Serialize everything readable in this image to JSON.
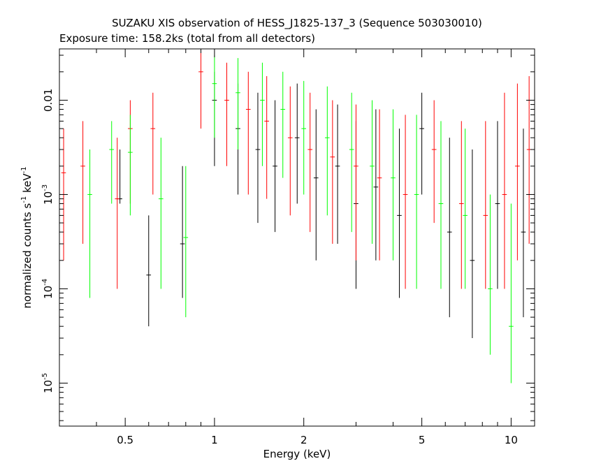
{
  "chart_data": {
    "type": "scatter",
    "title": "SUZAKU XIS observation of HESS_J1825-137_3 (Sequence 503030010)",
    "subtitle": "Exposure time: 158.2ks (total from all detectors)",
    "xlabel": "Energy (keV)",
    "ylabel": "normalized counts s",
    "ylabel_sup1": "-1",
    "ylabel_mid": " keV",
    "ylabel_sup2": "-1",
    "x_scale": "log",
    "y_scale": "log",
    "xlim": [
      0.3,
      12
    ],
    "ylim": [
      3.5e-06,
      0.035
    ],
    "x_ticks": [
      {
        "value": 0.5,
        "label": "0.5"
      },
      {
        "value": 1,
        "label": "1"
      },
      {
        "value": 2,
        "label": "2"
      },
      {
        "value": 5,
        "label": "5"
      },
      {
        "value": 10,
        "label": "10"
      }
    ],
    "y_ticks": [
      {
        "value": 0.01,
        "base": "0.01",
        "exp": ""
      },
      {
        "value": 0.001,
        "base": "10",
        "exp": "-3"
      },
      {
        "value": 0.0001,
        "base": "10",
        "exp": "-4"
      },
      {
        "value": 1e-05,
        "base": "10",
        "exp": "-5"
      }
    ],
    "grid": false,
    "legend": "none",
    "series": [
      {
        "color": "#000000",
        "points": [
          [
            0.48,
            0.0009,
            0.0008,
            0.003
          ],
          [
            0.6,
            0.00014,
            4e-05,
            0.0006
          ],
          [
            0.78,
            0.0003,
            8e-05,
            0.002
          ],
          [
            1.0,
            0.01,
            0.002,
            0.02
          ],
          [
            1.2,
            0.005,
            0.001,
            0.015
          ],
          [
            1.4,
            0.003,
            0.0005,
            0.012
          ],
          [
            1.6,
            0.002,
            0.0004,
            0.01
          ],
          [
            1.9,
            0.004,
            0.0008,
            0.015
          ],
          [
            2.2,
            0.0015,
            0.0002,
            0.008
          ],
          [
            2.6,
            0.002,
            0.0003,
            0.009
          ],
          [
            3.0,
            0.0008,
            0.0001,
            0.006
          ],
          [
            3.5,
            0.0012,
            0.0002,
            0.008
          ],
          [
            4.2,
            0.0006,
            8e-05,
            0.005
          ],
          [
            5.0,
            0.005,
            0.001,
            0.012
          ],
          [
            6.2,
            0.0004,
            5e-05,
            0.004
          ],
          [
            7.4,
            0.0002,
            3e-05,
            0.003
          ],
          [
            9.0,
            0.0008,
            0.0001,
            0.006
          ],
          [
            11.0,
            0.0004,
            5e-05,
            0.005
          ]
        ]
      },
      {
        "color": "#ff0000",
        "points": [
          [
            0.31,
            0.0017,
            0.0002,
            0.005
          ],
          [
            0.36,
            0.002,
            0.0003,
            0.006
          ],
          [
            0.47,
            0.0009,
            0.0001,
            0.004
          ],
          [
            0.52,
            0.005,
            0.0008,
            0.01
          ],
          [
            0.62,
            0.005,
            0.001,
            0.012
          ],
          [
            0.9,
            0.02,
            0.005,
            0.035
          ],
          [
            1.1,
            0.01,
            0.002,
            0.025
          ],
          [
            1.3,
            0.008,
            0.001,
            0.02
          ],
          [
            1.5,
            0.006,
            0.0009,
            0.018
          ],
          [
            1.8,
            0.004,
            0.0006,
            0.014
          ],
          [
            2.1,
            0.003,
            0.0004,
            0.012
          ],
          [
            2.5,
            0.0025,
            0.0003,
            0.01
          ],
          [
            3.0,
            0.002,
            0.0002,
            0.009
          ],
          [
            3.6,
            0.0015,
            0.0002,
            0.008
          ],
          [
            4.4,
            0.001,
            0.0001,
            0.007
          ],
          [
            5.5,
            0.003,
            0.0005,
            0.01
          ],
          [
            6.8,
            0.0008,
            0.0001,
            0.006
          ],
          [
            8.2,
            0.0006,
            0.0001,
            0.006
          ],
          [
            9.5,
            0.001,
            0.0001,
            0.012
          ],
          [
            10.5,
            0.002,
            0.0002,
            0.015
          ],
          [
            11.5,
            0.003,
            0.0003,
            0.018
          ]
        ]
      },
      {
        "color": "#00ff00",
        "points": [
          [
            0.38,
            0.001,
            8e-05,
            0.003
          ],
          [
            0.45,
            0.003,
            0.0008,
            0.006
          ],
          [
            0.52,
            0.0028,
            0.0006,
            0.007
          ],
          [
            0.66,
            0.0009,
            0.0001,
            0.004
          ],
          [
            0.8,
            0.00035,
            5e-05,
            0.002
          ],
          [
            1.0,
            0.015,
            0.004,
            0.03
          ],
          [
            1.2,
            0.012,
            0.003,
            0.028
          ],
          [
            1.45,
            0.01,
            0.002,
            0.025
          ],
          [
            1.7,
            0.008,
            0.0015,
            0.02
          ],
          [
            2.0,
            0.005,
            0.001,
            0.016
          ],
          [
            2.4,
            0.004,
            0.0006,
            0.014
          ],
          [
            2.9,
            0.003,
            0.0004,
            0.012
          ],
          [
            3.4,
            0.002,
            0.0003,
            0.01
          ],
          [
            4.0,
            0.0015,
            0.0002,
            0.008
          ],
          [
            4.8,
            0.001,
            0.0001,
            0.007
          ],
          [
            5.8,
            0.0008,
            0.0001,
            0.006
          ],
          [
            7.0,
            0.0006,
            0.0001,
            0.005
          ],
          [
            8.5,
            0.0001,
            2e-05,
            0.001
          ],
          [
            10.0,
            4e-05,
            1e-05,
            0.0008
          ]
        ]
      }
    ]
  }
}
